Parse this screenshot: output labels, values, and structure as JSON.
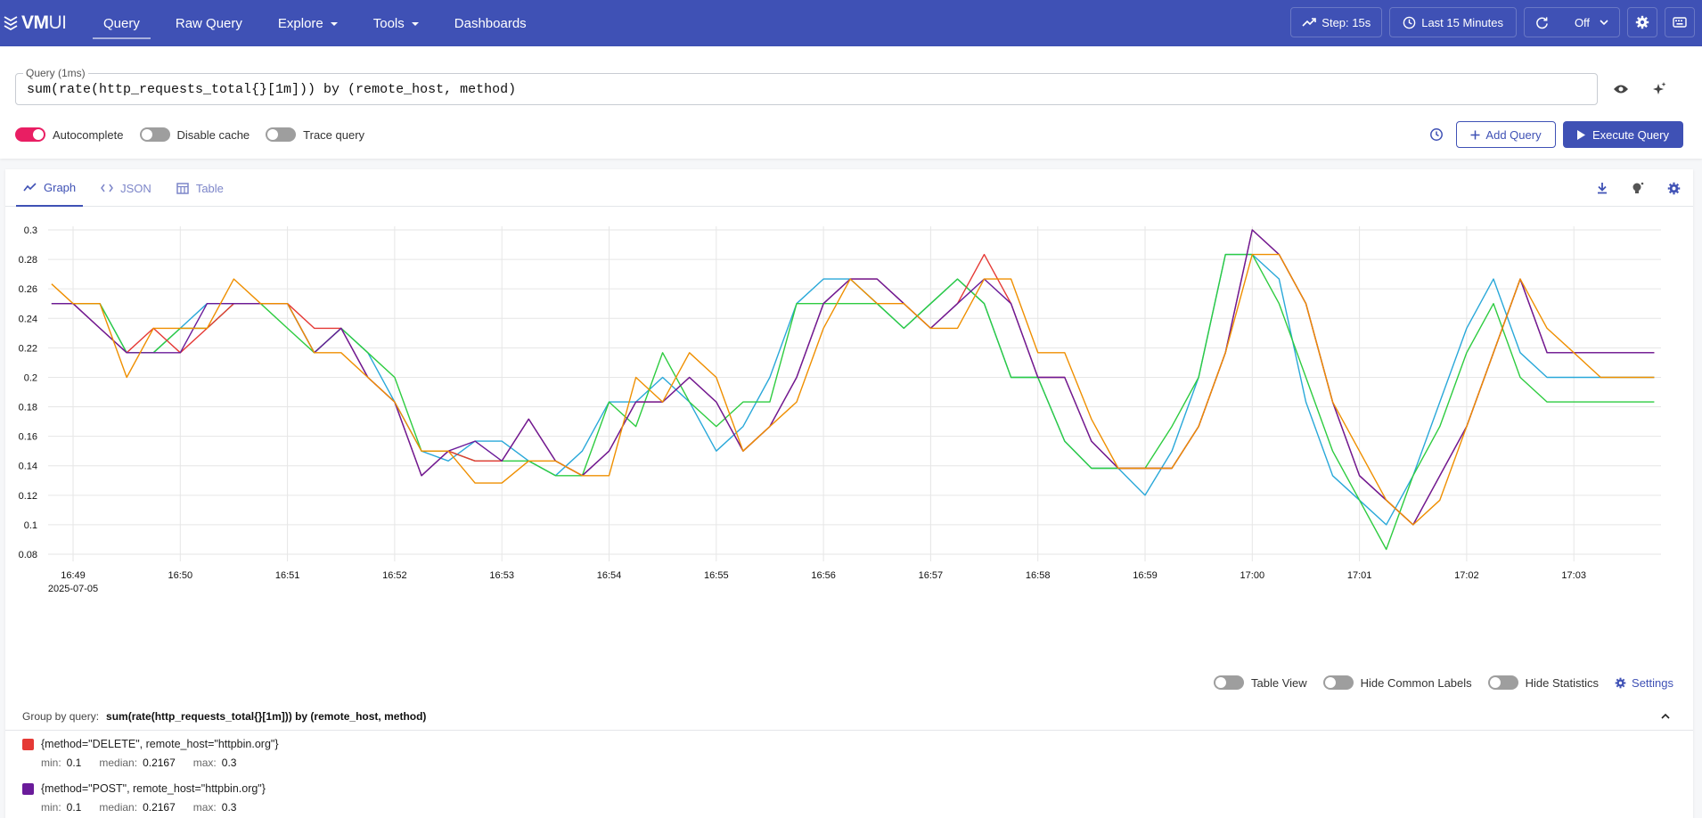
{
  "app": {
    "logo_main": "VM",
    "logo_sub": "UI"
  },
  "nav": [
    {
      "label": "Query",
      "active": true
    },
    {
      "label": "Raw Query"
    },
    {
      "label": "Explore",
      "dropdown": true
    },
    {
      "label": "Tools",
      "dropdown": true
    },
    {
      "label": "Dashboards"
    }
  ],
  "header_controls": {
    "step_label": "Step: 15s",
    "time_range": "Last 15 Minutes",
    "refresh": "Off"
  },
  "query": {
    "label": "Query (1ms)",
    "expr": "sum(rate(http_requests_total{}[1m])) by (remote_host, method)"
  },
  "toggles": {
    "autocomplete": {
      "label": "Autocomplete",
      "on": true
    },
    "disable_cache": {
      "label": "Disable cache",
      "on": false
    },
    "trace_query": {
      "label": "Trace query",
      "on": false
    }
  },
  "buttons": {
    "add_query": "Add Query",
    "execute_query": "Execute Query"
  },
  "tabs": [
    {
      "label": "Graph",
      "active": true
    },
    {
      "label": "JSON"
    },
    {
      "label": "Table"
    }
  ],
  "legend_controls": {
    "table_view": "Table View",
    "hide_common_labels": "Hide Common Labels",
    "hide_statistics": "Hide Statistics",
    "settings": "Settings"
  },
  "group": {
    "label": "Group by query:",
    "value": "sum(rate(http_requests_total{}[1m])) by (remote_host, method)"
  },
  "legend_series": [
    {
      "label": "{method=\"DELETE\", remote_host=\"httpbin.org\"}",
      "color": "#e53935",
      "min_label": "min:",
      "min": "0.1",
      "median_label": "median:",
      "median": "0.2167",
      "max_label": "max:",
      "max": "0.3"
    },
    {
      "label": "{method=\"POST\", remote_host=\"httpbin.org\"}",
      "color": "#6a1b9a",
      "min_label": "min:",
      "min": "0.1",
      "median_label": "median:",
      "median": "0.2167",
      "max_label": "max:",
      "max": "0.3"
    }
  ],
  "chart_data": {
    "type": "line",
    "title": "",
    "xlabel": "",
    "ylabel": "",
    "x_date_label": "2025-07-05",
    "x_ticks": [
      "16:49",
      "16:50",
      "16:51",
      "16:52",
      "16:53",
      "16:54",
      "16:55",
      "16:56",
      "16:57",
      "16:58",
      "16:59",
      "17:00",
      "17:01",
      "17:02",
      "17:03"
    ],
    "y_ticks": [
      "0.08",
      "0.1",
      "0.12",
      "0.14",
      "0.16",
      "0.18",
      "0.2",
      "0.22",
      "0.24",
      "0.26",
      "0.28",
      "0.3"
    ],
    "ylim": [
      0.08,
      0.3
    ],
    "x_unit": "minutes after 16:49",
    "grid": true,
    "series": [
      {
        "color": "#29a8d9",
        "x": [
          -0.2,
          0,
          0.25,
          0.5,
          0.75,
          1,
          1.25,
          1.5,
          1.75,
          2,
          2.25,
          2.5,
          2.75,
          3,
          3.25,
          3.5,
          3.75,
          4,
          4.25,
          4.5,
          4.75,
          5,
          5.25,
          5.5,
          5.75,
          6,
          6.25,
          6.5,
          6.75,
          7,
          7.25,
          7.5,
          7.75,
          8,
          8.25,
          8.5,
          8.75,
          9,
          9.25,
          9.5,
          9.75,
          10,
          10.25,
          10.5,
          10.75,
          11,
          11.25,
          11.5,
          11.75,
          12,
          12.25,
          12.5,
          12.75,
          13,
          13.25,
          13.5,
          13.75,
          14,
          14.25,
          14.5,
          14.75
        ],
        "y": [
          0.25,
          0.25,
          0.25,
          0.2167,
          0.2167,
          0.2333,
          0.25,
          0.25,
          0.25,
          0.25,
          0.2167,
          0.2333,
          0.2167,
          0.1833,
          0.15,
          0.1433,
          0.1567,
          0.1567,
          0.1433,
          0.1333,
          0.15,
          0.1833,
          0.1833,
          0.2,
          0.1833,
          0.15,
          0.1667,
          0.2,
          0.25,
          0.2667,
          0.2667,
          0.25,
          0.2333,
          0.25,
          0.2667,
          0.25,
          0.2,
          0.2,
          0.1567,
          0.1383,
          0.1383,
          0.12,
          0.15,
          0.2,
          0.2833,
          0.2833,
          0.2667,
          0.1833,
          0.1333,
          0.1167,
          0.1,
          0.1333,
          0.1833,
          0.2333,
          0.2667,
          0.2167,
          0.2,
          0.2,
          0.2,
          0.2,
          0.2
        ]
      },
      {
        "color": "#2ecc40",
        "x": [
          -0.2,
          0,
          0.25,
          0.5,
          0.75,
          1,
          1.25,
          1.5,
          1.75,
          2,
          2.25,
          2.5,
          2.75,
          3,
          3.25,
          3.5,
          3.75,
          4,
          4.25,
          4.5,
          4.75,
          5,
          5.25,
          5.5,
          5.75,
          6,
          6.25,
          6.5,
          6.75,
          7,
          7.25,
          7.5,
          7.75,
          8,
          8.25,
          8.5,
          8.75,
          9,
          9.25,
          9.5,
          9.75,
          10,
          10.25,
          10.5,
          10.75,
          11,
          11.25,
          11.5,
          11.75,
          12,
          12.25,
          12.5,
          12.75,
          13,
          13.25,
          13.5,
          13.75,
          14,
          14.25,
          14.5,
          14.75
        ],
        "y": [
          0.25,
          0.25,
          0.25,
          0.2167,
          0.2167,
          0.2333,
          0.2333,
          0.25,
          0.25,
          0.2333,
          0.2167,
          0.2333,
          0.2167,
          0.2,
          0.15,
          0.15,
          0.1433,
          0.1433,
          0.1433,
          0.1333,
          0.1333,
          0.1833,
          0.1667,
          0.2167,
          0.1833,
          0.1667,
          0.1833,
          0.1833,
          0.25,
          0.25,
          0.25,
          0.25,
          0.2333,
          0.25,
          0.2667,
          0.25,
          0.2,
          0.2,
          0.1567,
          0.1383,
          0.1383,
          0.1383,
          0.1667,
          0.2,
          0.2833,
          0.2833,
          0.25,
          0.2,
          0.15,
          0.1167,
          0.0833,
          0.1333,
          0.1667,
          0.2167,
          0.25,
          0.2,
          0.1833,
          0.1833,
          0.1833,
          0.1833,
          0.1833
        ]
      },
      {
        "color": "#e53935",
        "x": [
          -0.2,
          0,
          0.25,
          0.5,
          0.75,
          1,
          1.25,
          1.5,
          1.75,
          2,
          2.25,
          2.5,
          2.75,
          3,
          3.25,
          3.5,
          3.75,
          4,
          4.25,
          4.5,
          4.75,
          5,
          5.25,
          5.5,
          5.75,
          6,
          6.25,
          6.5,
          6.75,
          7,
          7.25,
          7.5,
          7.75,
          8,
          8.25,
          8.5,
          8.75,
          9,
          9.25,
          9.5,
          9.75,
          10,
          10.25,
          10.5,
          10.75,
          11,
          11.25,
          11.5,
          11.75,
          12,
          12.25,
          12.5,
          12.75,
          13,
          13.25,
          13.5,
          13.75,
          14,
          14.25,
          14.5,
          14.75
        ],
        "y": [
          0.25,
          0.25,
          0.2333,
          0.2167,
          0.2333,
          0.2167,
          0.2333,
          0.25,
          0.25,
          0.25,
          0.2333,
          0.2333,
          0.2,
          0.1833,
          0.1333,
          0.15,
          0.1433,
          0.1433,
          0.1717,
          0.1433,
          0.1333,
          0.15,
          0.1833,
          0.1833,
          0.2,
          0.1833,
          0.15,
          0.1667,
          0.2,
          0.25,
          0.2667,
          0.2667,
          0.25,
          0.2333,
          0.25,
          0.2833,
          0.25,
          0.2,
          0.2,
          0.1567,
          0.1383,
          0.1383,
          0.1383,
          0.1667,
          0.2167,
          0.3,
          0.2833,
          0.25,
          0.1833,
          0.1333,
          0.1167,
          0.1,
          0.1333,
          0.1667,
          0.2167,
          0.2667,
          0.2167,
          0.2167,
          0.2167,
          0.2167,
          0.2167
        ]
      },
      {
        "color": "#6a1b9a",
        "x": [
          -0.2,
          0,
          0.25,
          0.5,
          0.75,
          1,
          1.25,
          1.5,
          1.75,
          2,
          2.25,
          2.5,
          2.75,
          3,
          3.25,
          3.5,
          3.75,
          4,
          4.25,
          4.5,
          4.75,
          5,
          5.25,
          5.5,
          5.75,
          6,
          6.25,
          6.5,
          6.75,
          7,
          7.25,
          7.5,
          7.75,
          8,
          8.25,
          8.5,
          8.75,
          9,
          9.25,
          9.5,
          9.75,
          10,
          10.25,
          10.5,
          10.75,
          11,
          11.25,
          11.5,
          11.75,
          12,
          12.25,
          12.5,
          12.75,
          13,
          13.25,
          13.5,
          13.75,
          14,
          14.25,
          14.5,
          14.75
        ],
        "y": [
          0.25,
          0.25,
          0.2333,
          0.2167,
          0.2167,
          0.2167,
          0.25,
          0.25,
          0.25,
          0.25,
          0.2167,
          0.2333,
          0.2,
          0.1833,
          0.1333,
          0.15,
          0.1567,
          0.1433,
          0.1717,
          0.1433,
          0.1333,
          0.15,
          0.1833,
          0.1833,
          0.2,
          0.1833,
          0.15,
          0.1667,
          0.2,
          0.25,
          0.2667,
          0.2667,
          0.25,
          0.2333,
          0.25,
          0.2667,
          0.25,
          0.2,
          0.2,
          0.1567,
          0.1383,
          0.1383,
          0.1383,
          0.1667,
          0.2167,
          0.3,
          0.2833,
          0.25,
          0.1833,
          0.1333,
          0.1167,
          0.1,
          0.1333,
          0.1667,
          0.2167,
          0.2667,
          0.2167,
          0.2167,
          0.2167,
          0.2167,
          0.2167
        ]
      },
      {
        "color": "#ef8f00",
        "x": [
          -0.2,
          0,
          0.25,
          0.5,
          0.75,
          1,
          1.25,
          1.5,
          1.75,
          2,
          2.25,
          2.5,
          2.75,
          3,
          3.25,
          3.5,
          3.75,
          4,
          4.25,
          4.5,
          4.75,
          5,
          5.25,
          5.5,
          5.75,
          6,
          6.25,
          6.5,
          6.75,
          7,
          7.25,
          7.5,
          7.75,
          8,
          8.25,
          8.5,
          8.75,
          9,
          9.25,
          9.5,
          9.75,
          10,
          10.25,
          10.5,
          10.75,
          11,
          11.25,
          11.5,
          11.75,
          12,
          12.25,
          12.5,
          12.75,
          13,
          13.25,
          13.5,
          13.75,
          14,
          14.25,
          14.5,
          14.75
        ],
        "y": [
          0.2633,
          0.25,
          0.25,
          0.2,
          0.2333,
          0.2333,
          0.2333,
          0.2667,
          0.25,
          0.25,
          0.2167,
          0.2167,
          0.2,
          0.1833,
          0.15,
          0.15,
          0.1283,
          0.1283,
          0.1433,
          0.1433,
          0.1333,
          0.1333,
          0.2,
          0.1833,
          0.2167,
          0.2,
          0.15,
          0.1667,
          0.1833,
          0.2333,
          0.2667,
          0.25,
          0.25,
          0.2333,
          0.2333,
          0.2667,
          0.2667,
          0.2167,
          0.2167,
          0.1717,
          0.1383,
          0.1383,
          0.1383,
          0.1667,
          0.2167,
          0.2833,
          0.2833,
          0.25,
          0.1833,
          0.15,
          0.1167,
          0.1,
          0.1167,
          0.1667,
          0.2167,
          0.2667,
          0.2333,
          0.2167,
          0.2,
          0.2,
          0.2
        ]
      }
    ]
  }
}
